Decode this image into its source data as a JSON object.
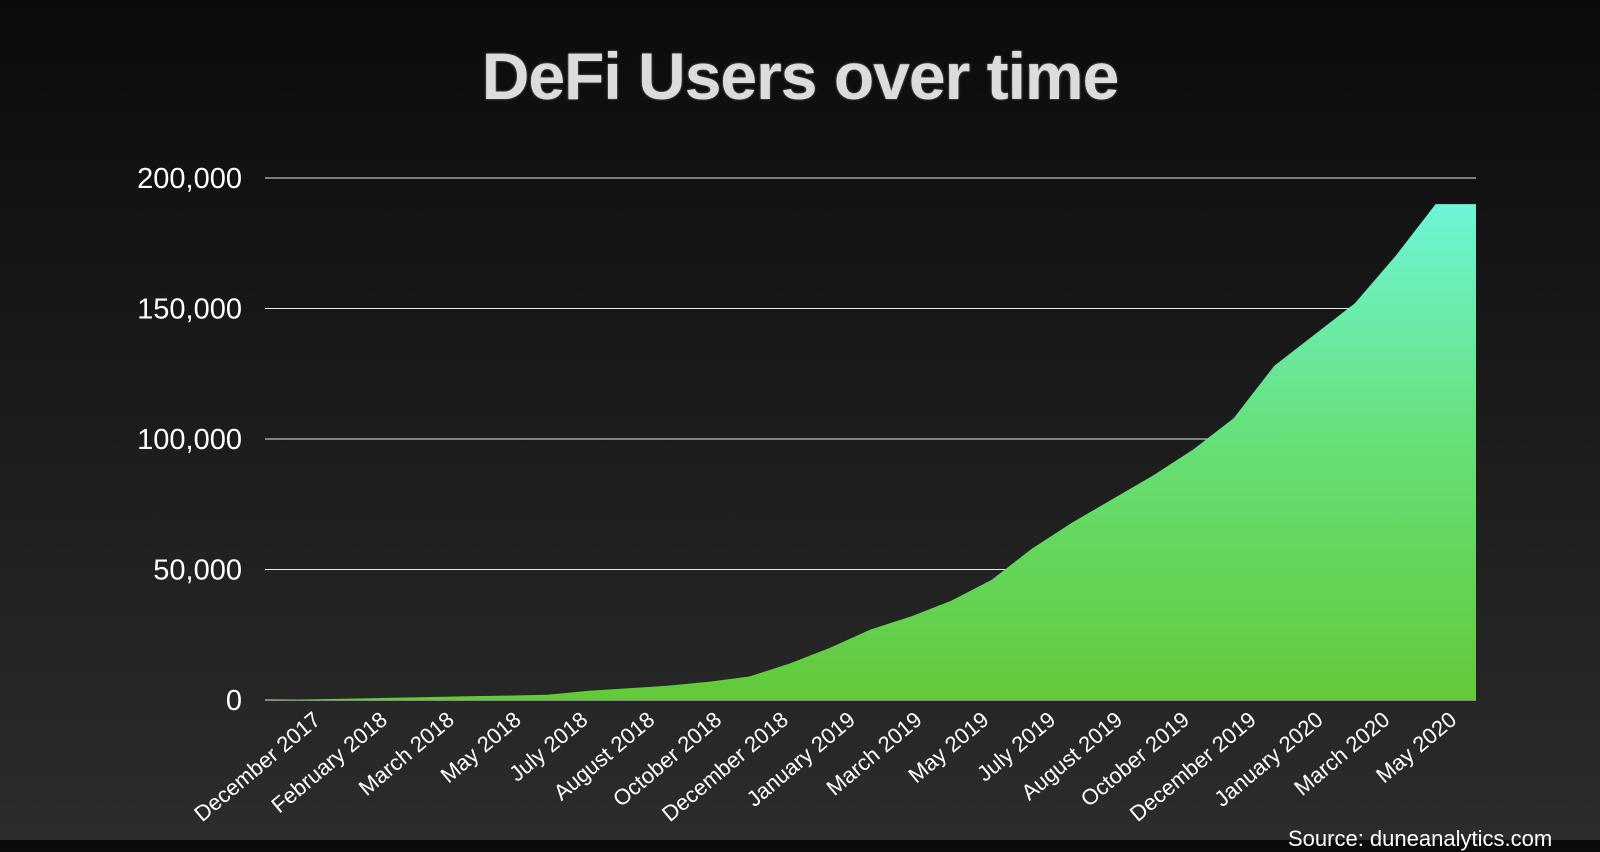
{
  "chart_data": {
    "type": "area",
    "title": "DeFi Users over time",
    "source": "Source: duneanalytics.com",
    "xlabel": "",
    "ylabel": "",
    "ylim": [
      0,
      200000
    ],
    "yticks": [
      0,
      50000,
      100000,
      150000,
      200000
    ],
    "ytick_labels": [
      "0",
      "50,000",
      "100,000",
      "150,000",
      "200,000"
    ],
    "xtick_labels": [
      "December 2017",
      "February 2018",
      "March 2018",
      "May 2018",
      "July 2018",
      "August 2018",
      "October 2018",
      "December 2018",
      "January 2019",
      "March 2019",
      "May 2019",
      "July 2019",
      "August 2019",
      "October 2019",
      "December 2019",
      "January 2020",
      "March 2020",
      "May 2020"
    ],
    "x": [
      0,
      0.8,
      2,
      3,
      4,
      5,
      6,
      7,
      8,
      9,
      10,
      11,
      12,
      13,
      14,
      15,
      16,
      17,
      18,
      19,
      20,
      21,
      22,
      23,
      24,
      25,
      26,
      27,
      28,
      29,
      30
    ],
    "values": [
      0,
      200,
      500,
      800,
      1100,
      1400,
      1700,
      2000,
      3500,
      4500,
      5500,
      7000,
      9000,
      14000,
      20000,
      27000,
      32000,
      38000,
      46000,
      58000,
      68000,
      77000,
      86000,
      96000,
      108000,
      128000,
      140000,
      152000,
      170000,
      190000,
      190000
    ],
    "x_unit_note": "",
    "grid": true,
    "colors": {
      "area_top": "#6ef5d6",
      "area_bottom": "#63c93a",
      "grid": "#e8e8e8",
      "text": "#ffffff"
    }
  }
}
